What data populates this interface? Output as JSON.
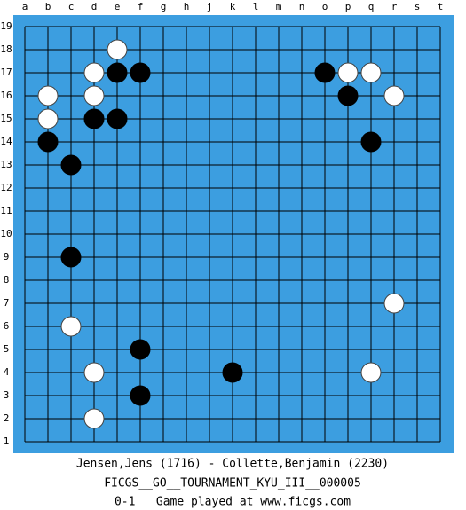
{
  "board": {
    "columns": [
      "a",
      "b",
      "c",
      "d",
      "e",
      "f",
      "g",
      "h",
      "j",
      "k",
      "l",
      "m",
      "n",
      "o",
      "p",
      "q",
      "r",
      "s",
      "t"
    ],
    "rows": [
      "19",
      "18",
      "17",
      "16",
      "15",
      "14",
      "13",
      "12",
      "11",
      "10",
      "9",
      "8",
      "7",
      "6",
      "5",
      "4",
      "3",
      "2",
      "1"
    ]
  },
  "footer": {
    "players": "Jensen,Jens (1716) - Collette,Benjamin (2230)",
    "event": "FICGS__GO__TOURNAMENT_KYU_III__000005",
    "result": "0-1   Game played at www.ficgs.com"
  }
}
